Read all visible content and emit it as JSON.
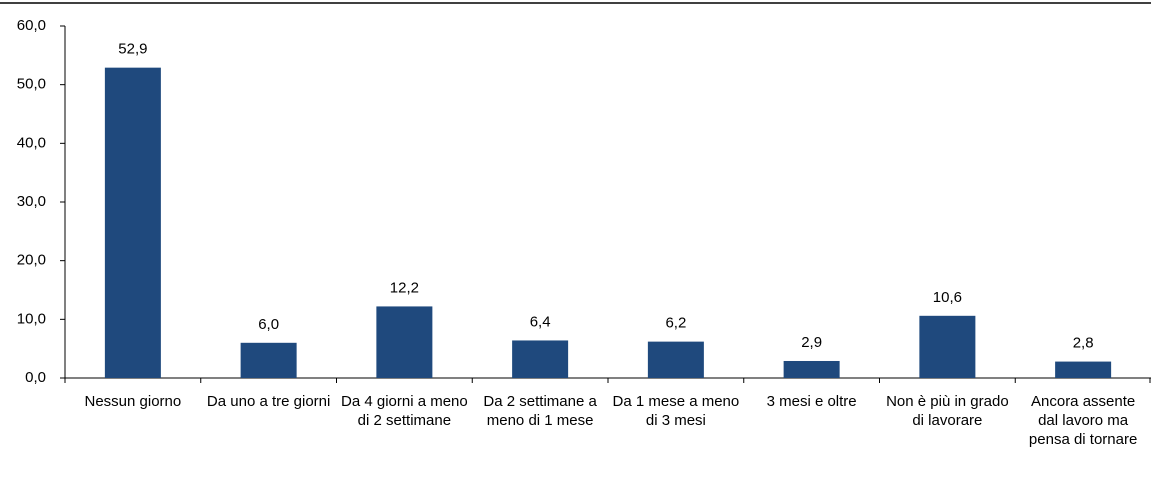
{
  "chart_data": {
    "type": "bar",
    "categories": [
      "Nessun giorno",
      "Da uno a tre giorni",
      "Da 4 giorni a meno di 2 settimane",
      "Da 2 settimane a meno di 1 mese",
      "Da 1 mese a meno di 3 mesi",
      "3 mesi e oltre",
      "Non è più in grado di lavorare",
      "Ancora assente dal lavoro ma pensa di tornare"
    ],
    "values": [
      52.9,
      6.0,
      12.2,
      6.4,
      6.2,
      2.9,
      10.6,
      2.8
    ],
    "value_labels": [
      "52,9",
      "6,0",
      "12,2",
      "6,4",
      "6,2",
      "2,9",
      "10,6",
      "2,8"
    ],
    "color": "#1f497d",
    "ylim": [
      0,
      60
    ],
    "yticks": [
      {
        "value": 0,
        "label": "0,0"
      },
      {
        "value": 10,
        "label": "10,0"
      },
      {
        "value": 20,
        "label": "20,0"
      },
      {
        "value": 30,
        "label": "30,0"
      },
      {
        "value": 40,
        "label": "40,0"
      },
      {
        "value": 50,
        "label": "50,0"
      },
      {
        "value": 60,
        "label": "60,0"
      }
    ]
  }
}
